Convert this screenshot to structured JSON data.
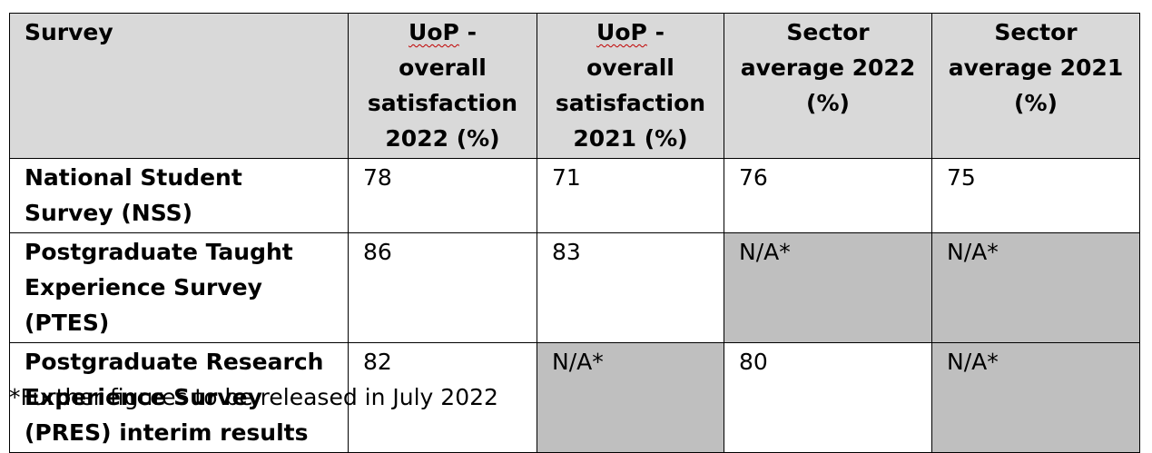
{
  "table": {
    "headers": [
      {
        "pre": "",
        "main": "Survey"
      },
      {
        "pre": "UoP",
        "main": " - overall satisfaction 2022 (%)"
      },
      {
        "pre": "UoP",
        "main": " - overall satisfaction 2021 (%)"
      },
      {
        "pre": "",
        "main": "Sector average 2022 (%)"
      },
      {
        "pre": "",
        "main": "Sector average 2021 (%)"
      }
    ],
    "rows": [
      {
        "survey": "National Student Survey (NSS)",
        "cells": [
          "78",
          "71",
          "76",
          "75"
        ]
      },
      {
        "survey": "Postgraduate Taught Experience Survey (PTES)",
        "cells": [
          "86",
          "83",
          "N/A*",
          "N/A*"
        ]
      },
      {
        "survey": "Postgraduate Research Experience Survey (PRES) interim results",
        "cells": [
          "82",
          "N/A*",
          "80",
          "N/A*"
        ]
      }
    ]
  },
  "footnote": "*Further figures to be released in July 2022",
  "colors": {
    "header_bg": "#d9d9d9",
    "na_bg": "#bfbfbf",
    "border": "#000000",
    "spellcheck_underline": "#c00000"
  }
}
